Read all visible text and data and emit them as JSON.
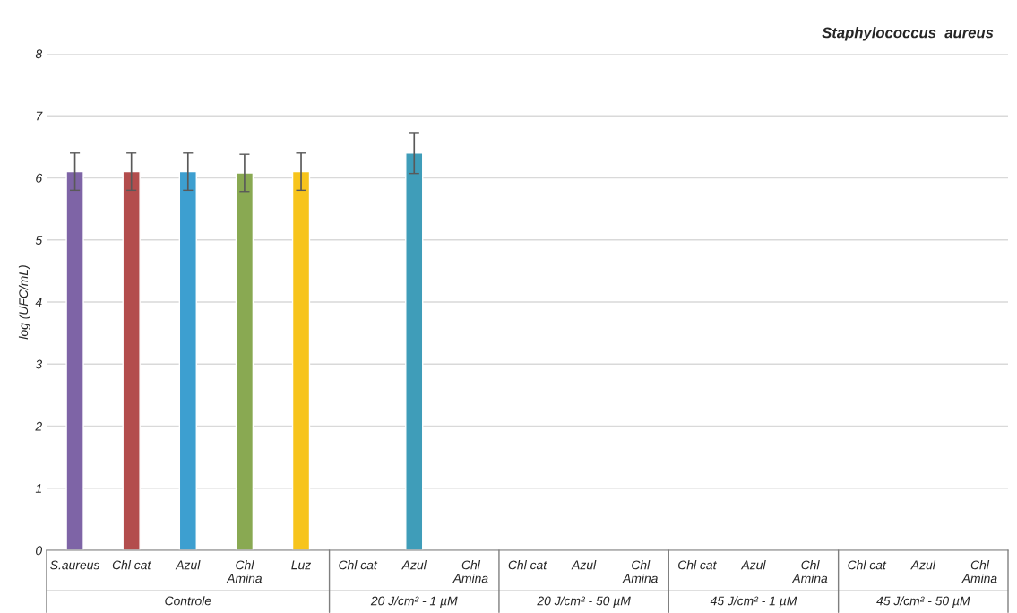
{
  "chart_data": {
    "type": "bar",
    "title": "Staphylococcus  aureus",
    "ylabel": "log (UFC/mL)",
    "categories": [
      "S.aureus",
      "Chl cat",
      "Azul",
      "Chl\nAmina",
      "Luz",
      "Chl cat",
      "Azul",
      "Chl\nAmina",
      "Chl cat",
      "Azul",
      "Chl\nAmina",
      "Chl cat",
      "Azul",
      "Chl\nAmina",
      "Chl cat",
      "Azul",
      "Chl\nAmina"
    ],
    "values": [
      6.1,
      6.1,
      6.1,
      6.08,
      6.1,
      null,
      6.4,
      null,
      null,
      null,
      null,
      null,
      null,
      null,
      null,
      null,
      null
    ],
    "errors": [
      0.3,
      0.3,
      0.3,
      0.3,
      0.3,
      null,
      0.33,
      null,
      null,
      null,
      null,
      null,
      null,
      null,
      null,
      null,
      null
    ],
    "colors": [
      "#7e64a6",
      "#b34d4d",
      "#3d9fd0",
      "#89a952",
      "#f7c41c",
      "#888888",
      "#3f9db9",
      "#888888",
      "#888888",
      "#888888",
      "#888888",
      "#888888",
      "#888888",
      "#888888",
      "#888888",
      "#888888",
      "#888888"
    ],
    "annotations": [
      "Controle",
      "20 J/cm² - 1 µM",
      "20 J/cm² - 50 µM",
      "45 J/cm² - 1 µM",
      "45 J/cm² - 50 µM"
    ],
    "ylim": [
      0,
      8
    ],
    "yticks": [
      0,
      1,
      2,
      3,
      4,
      5,
      6,
      7,
      8
    ],
    "grid": "y"
  }
}
